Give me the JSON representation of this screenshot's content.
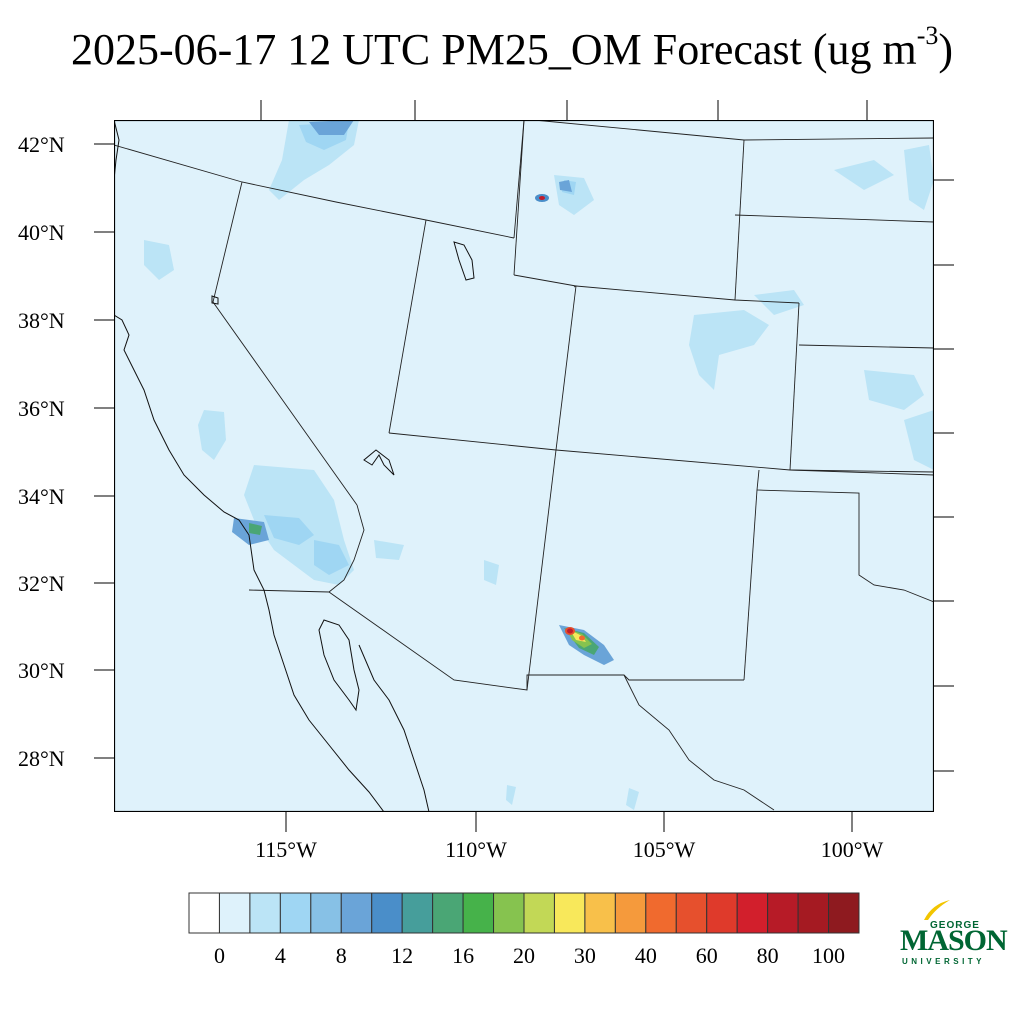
{
  "title": {
    "main": "2025-06-17 12 UTC PM25_OM Forecast (ug m",
    "sup": "-3",
    "close": ")"
  },
  "map": {
    "region": "Southwestern United States and northern Mexico",
    "background_color": "#dff2fb",
    "lat_labels": [
      "42°N",
      "40°N",
      "38°N",
      "36°N",
      "34°N",
      "32°N",
      "30°N",
      "28°N"
    ],
    "lon_labels": [
      "115°W",
      "110°W",
      "105°W",
      "100°W"
    ],
    "hotspots": [
      {
        "name": "southwestern New Mexico plume",
        "peak_value_range": "80-100",
        "colors": [
          "#c21b2b",
          "#f8e85b",
          "#46b24a",
          "#4a8ec9"
        ]
      },
      {
        "name": "southwestern Wyoming point",
        "peak_value_range": "80-100",
        "colors": [
          "#c21b2b",
          "#4a8ec9"
        ]
      },
      {
        "name": "southern California / Los Angeles basin",
        "peak_value_range": "14-16",
        "colors": [
          "#4aa675",
          "#6aa4d8"
        ]
      },
      {
        "name": "southern Idaho",
        "peak_value_range": "10-12",
        "colors": [
          "#4a8ec9",
          "#87c1e6"
        ]
      }
    ]
  },
  "colorbar": {
    "colors": [
      "#ffffff",
      "#def2fb",
      "#bbe4f6",
      "#9fd6f3",
      "#87c1e6",
      "#6aa4d8",
      "#4a8ec9",
      "#469e9b",
      "#4aa675",
      "#46b24a",
      "#86c34f",
      "#c2d856",
      "#f8e85b",
      "#f8c04a",
      "#f59a3c",
      "#f06a2e",
      "#e6502d",
      "#df3a2b",
      "#d21f2c",
      "#b71b27",
      "#a51a22",
      "#8e1a1f"
    ],
    "labels": [
      "0",
      "4",
      "8",
      "12",
      "16",
      "20",
      "30",
      "40",
      "60",
      "80",
      "100"
    ]
  },
  "logo": {
    "top": "GEORGE",
    "main": "MASON",
    "bottom": "UNIVERSITY",
    "brand_color": "#006633",
    "accent_color": "#f2c500"
  }
}
